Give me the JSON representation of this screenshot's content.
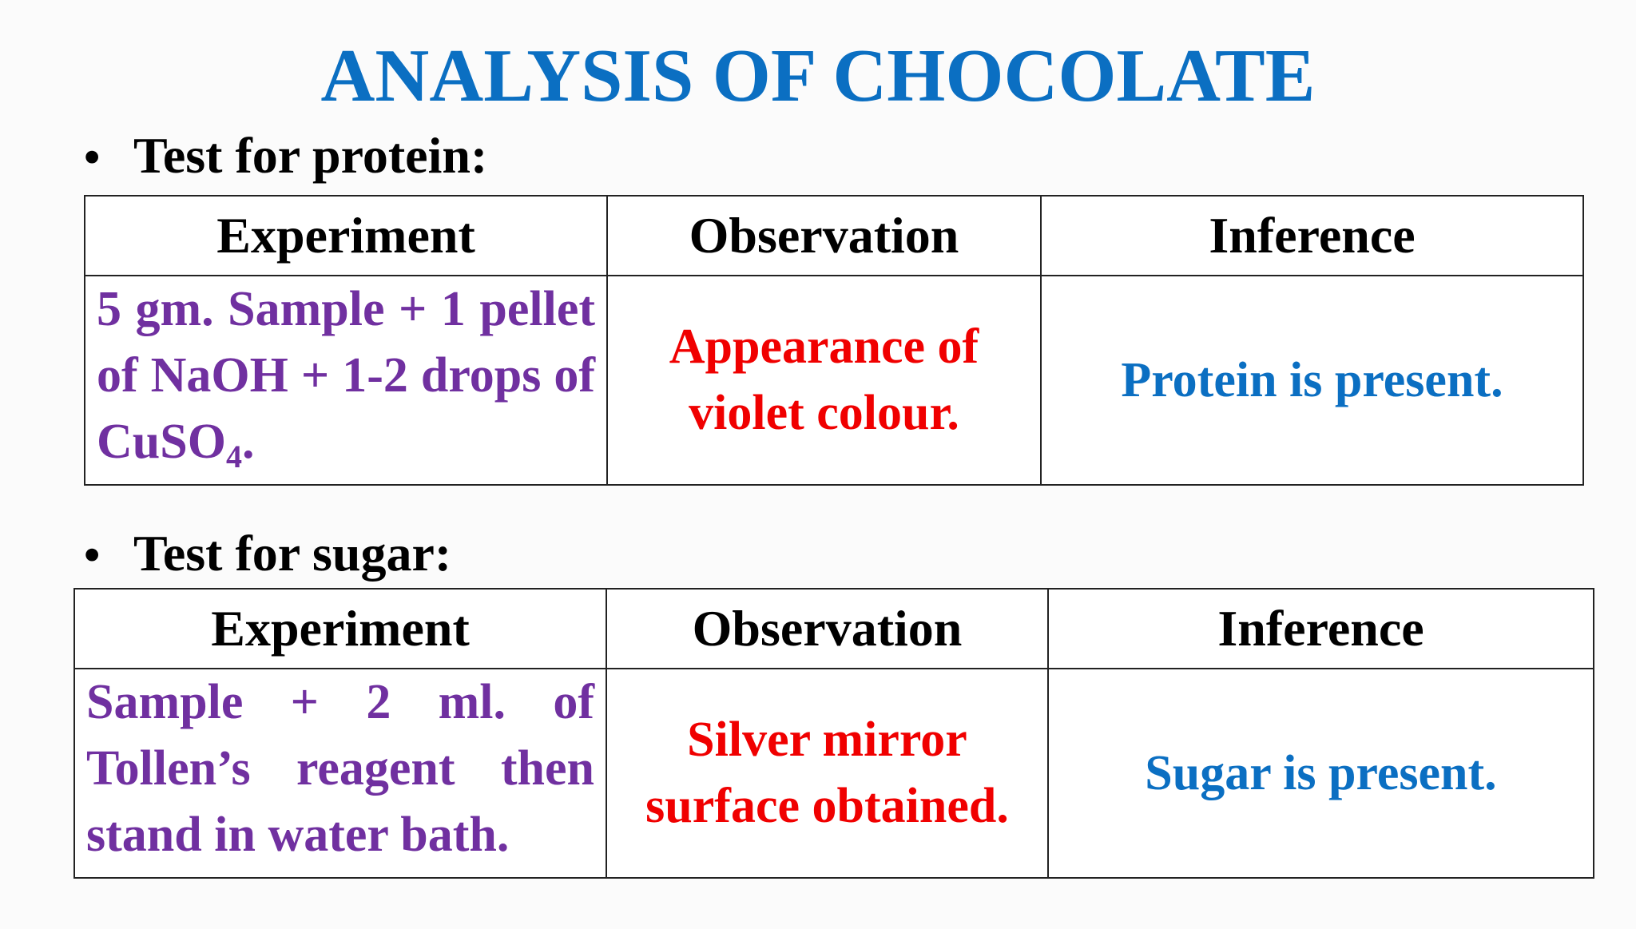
{
  "title": "ANALYSIS OF CHOCOLATE",
  "sections": [
    {
      "heading": "Test for protein:",
      "bullet": "•",
      "headers": [
        "Experiment",
        "Observation",
        "Inference"
      ],
      "row": {
        "experiment_main": "5 gm. Sample + 1 pellet of NaOH + 1-2 drops of CuSO",
        "experiment_subscript": "4",
        "experiment_end": ".",
        "observation": "Appearance of violet colour.",
        "inference": "Protein is present."
      }
    },
    {
      "heading": "Test for sugar:",
      "bullet": "•",
      "headers": [
        "Experiment",
        "Observation",
        "Inference"
      ],
      "row": {
        "experiment": "Sample + 2 ml. of Tollen’s reagent then stand in water bath.",
        "observation": "Silver mirror surface obtained.",
        "inference": "Sugar is present."
      }
    }
  ],
  "colors": {
    "title": "#0b6fc2",
    "experiment": "#7030a0",
    "observation": "#f00000",
    "inference": "#0b6fc2"
  }
}
